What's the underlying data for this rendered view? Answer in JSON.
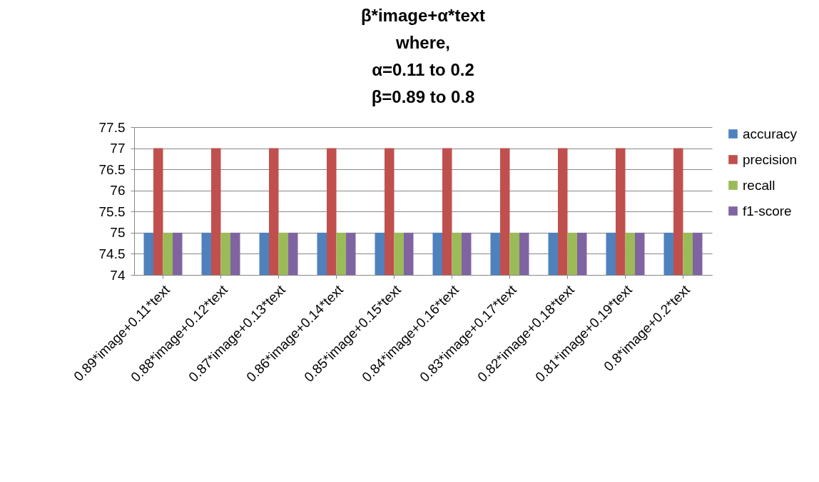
{
  "chart_data": {
    "type": "bar",
    "title": "β*image+α*text\nwhere,\nα=0.11 to 0.2\nβ=0.89 to 0.8",
    "categories": [
      "0.89*image+0.11*text",
      "0.88*image+0.12*text",
      "0.87*image+0.13*text",
      "0.86*image+0.14*text",
      "0.85*image+0.15*text",
      "0.84*image+0.16*text",
      "0.83*image+0.17*text",
      "0.82*image+0.18*text",
      "0.81*image+0.19*text",
      "0.8*image+0.2*text"
    ],
    "series": [
      {
        "name": "accuracy",
        "color": "#4f81bd",
        "values": [
          75,
          75,
          75,
          75,
          75,
          75,
          75,
          75,
          75,
          75
        ]
      },
      {
        "name": "precision",
        "color": "#c0504d",
        "values": [
          77,
          77,
          77,
          77,
          77,
          77,
          77,
          77,
          77,
          77
        ]
      },
      {
        "name": "recall",
        "color": "#9bbb59",
        "values": [
          75,
          75,
          75,
          75,
          75,
          75,
          75,
          75,
          75,
          75
        ]
      },
      {
        "name": "f1-score",
        "color": "#8064a2",
        "values": [
          75,
          75,
          75,
          75,
          75,
          75,
          75,
          75,
          75,
          75
        ]
      }
    ],
    "ylim": [
      74,
      77.5
    ],
    "yticks": [
      74,
      74.5,
      75,
      75.5,
      76,
      76.5,
      77,
      77.5
    ],
    "grid": "y",
    "legend": "right"
  }
}
